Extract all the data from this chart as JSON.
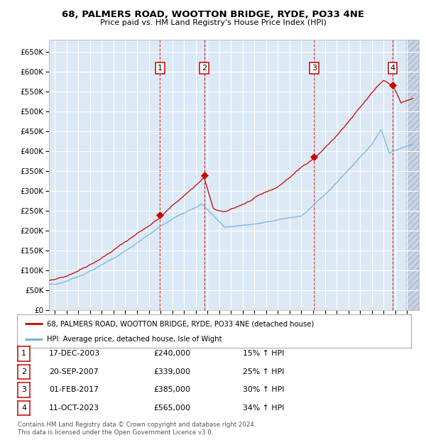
{
  "title": "68, PALMERS ROAD, WOOTTON BRIDGE, RYDE, PO33 4NE",
  "subtitle": "Price paid vs. HM Land Registry's House Price Index (HPI)",
  "legend_line1": "68, PALMERS ROAD, WOOTTON BRIDGE, RYDE, PO33 4NE (detached house)",
  "legend_line2": "HPI: Average price, detached house, Isle of Wight",
  "footer1": "Contains HM Land Registry data © Crown copyright and database right 2024.",
  "footer2": "This data is licensed under the Open Government Licence v3.0.",
  "purchases": [
    {
      "num": 1,
      "date": "17-DEC-2003",
      "price": 240000,
      "pct": "15%",
      "date_val": 2003.96
    },
    {
      "num": 2,
      "date": "20-SEP-2007",
      "price": 339000,
      "pct": "25%",
      "date_val": 2007.72
    },
    {
      "num": 3,
      "date": "01-FEB-2017",
      "price": 385000,
      "pct": "30%",
      "date_val": 2017.08
    },
    {
      "num": 4,
      "date": "11-OCT-2023",
      "price": 565000,
      "pct": "34%",
      "date_val": 2023.78
    }
  ],
  "ylim": [
    0,
    680000
  ],
  "xlim_start": 1994.5,
  "xlim_end": 2026.0,
  "hpi_color": "#6baed6",
  "price_color": "#cc0000",
  "bg_color": "#dce9f5",
  "grid_color": "#ffffff",
  "fig_width": 6.0,
  "fig_height": 6.2,
  "dpi": 100
}
